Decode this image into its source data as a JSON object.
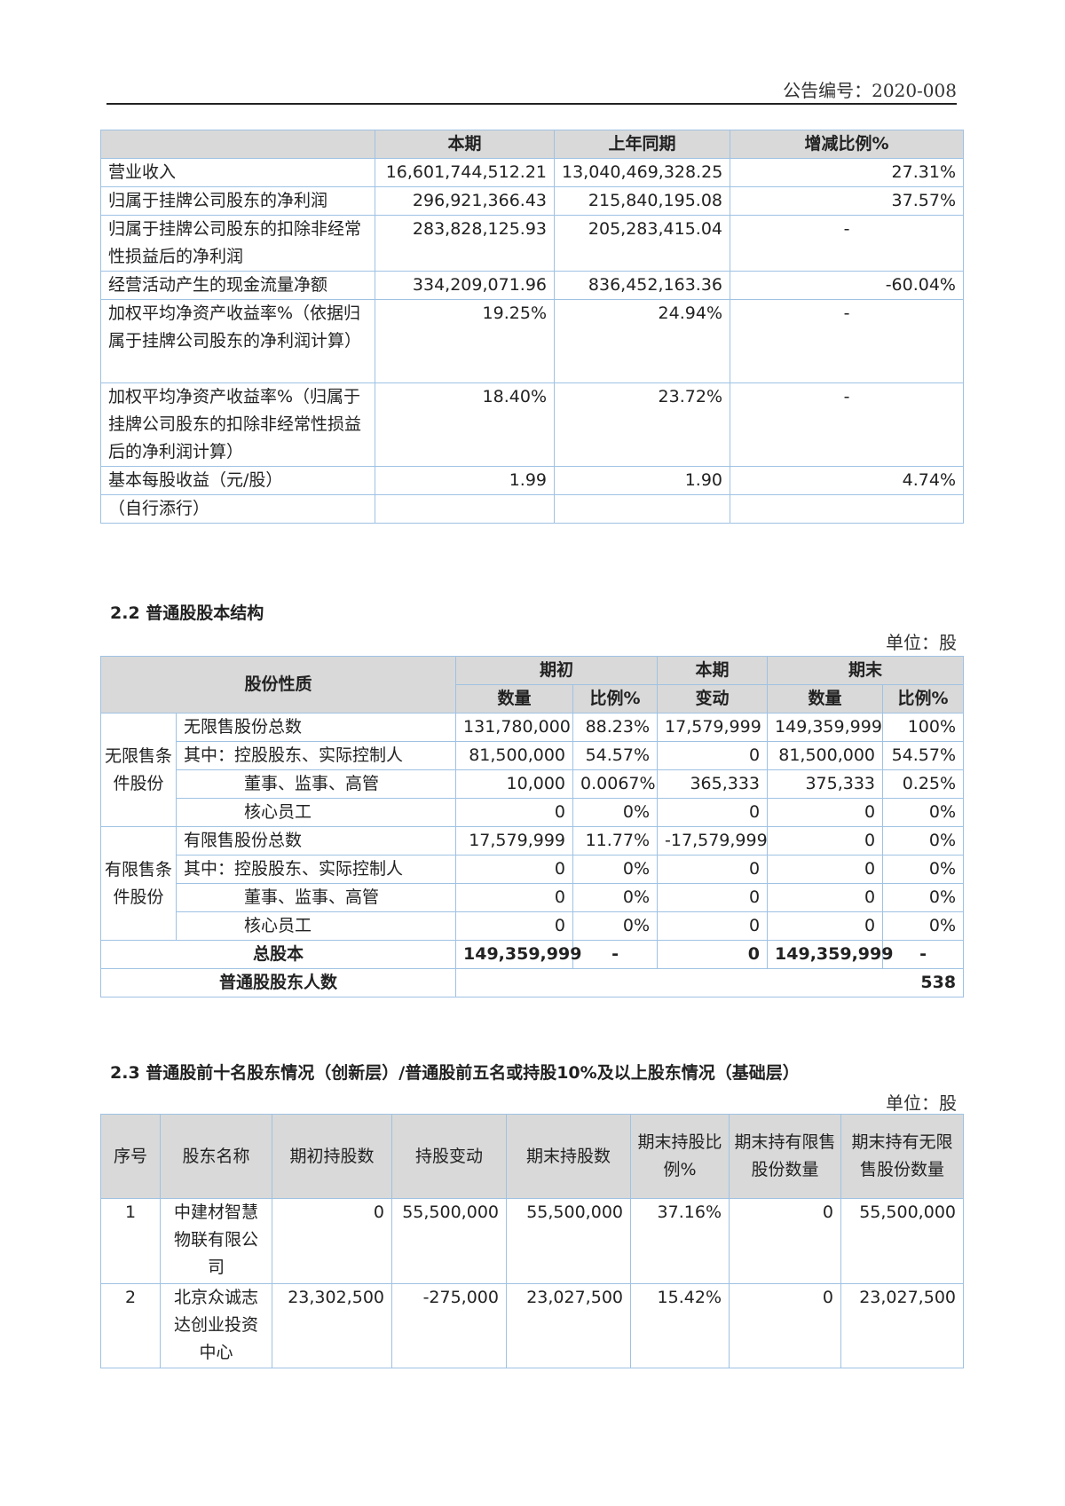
{
  "header": {
    "notice_no": "公告编号：2020-008"
  },
  "table1": {
    "headers": [
      "",
      "本期",
      "上年同期",
      "增减比例%"
    ],
    "rows": [
      [
        "营业收入",
        "16,601,744,512.21",
        "13,040,469,328.25",
        "27.31%"
      ],
      [
        "归属于挂牌公司股东的净利润",
        "296,921,366.43",
        "215,840,195.08",
        "37.57%"
      ],
      [
        "归属于挂牌公司股东的扣除非经常性损益后的净利润",
        "283,828,125.93",
        "205,283,415.04",
        "-"
      ],
      [
        "经营活动产生的现金流量净额",
        "334,209,071.96",
        "836,452,163.36",
        "-60.04%"
      ],
      [
        "加权平均净资产收益率%（依据归属于挂牌公司股东的净利润计算）",
        "19.25%",
        "24.94%",
        "-"
      ],
      [
        "加权平均净资产收益率%（归属于挂牌公司股东的扣除非经常性损益后的净利润计算）",
        "18.40%",
        "23.72%",
        "-"
      ],
      [
        "基本每股收益（元/股）",
        "1.99",
        "1.90",
        "4.74%"
      ],
      [
        "（自行添行）",
        "",
        "",
        ""
      ]
    ]
  },
  "section22": {
    "title": "2.2  普通股股本结构",
    "unit": "单位：股",
    "headers": {
      "nature": "股份性质",
      "begin": "期初",
      "change_top": "本期",
      "change_bottom": "变动",
      "end": "期末",
      "qty": "数量",
      "ratio": "比例%"
    },
    "groups": [
      {
        "label": "无限售条件股份",
        "rows": [
          [
            "无限售股份总数",
            "131,780,000",
            "88.23%",
            "17,579,999",
            "149,359,999",
            "100%"
          ],
          [
            "其中：控股股东、实际控制人",
            "81,500,000",
            "54.57%",
            "0",
            "81,500,000",
            "54.57%"
          ],
          [
            "董事、监事、高管",
            "10,000",
            "0.0067%",
            "365,333",
            "375,333",
            "0.25%"
          ],
          [
            "核心员工",
            "0",
            "0%",
            "0",
            "0",
            "0%"
          ]
        ]
      },
      {
        "label": "有限售条件股份",
        "rows": [
          [
            "有限售股份总数",
            "17,579,999",
            "11.77%",
            "-17,579,999",
            "0",
            "0%"
          ],
          [
            "其中：控股股东、实际控制人",
            "0",
            "0%",
            "0",
            "0",
            "0%"
          ],
          [
            "董事、监事、高管",
            "0",
            "0%",
            "0",
            "0",
            "0%"
          ],
          [
            "核心员工",
            "0",
            "0%",
            "0",
            "0",
            "0%"
          ]
        ]
      }
    ],
    "total": [
      "总股本",
      "149,359,999",
      "-",
      "0",
      "149,359,999",
      "-"
    ],
    "holders": [
      "普通股股东人数",
      "538"
    ]
  },
  "section23": {
    "title": "2.3  普通股前十名股东情况（创新层）/普通股前五名或持股10%及以上股东情况（基础层）",
    "unit": "单位：股",
    "headers": [
      "序号",
      "股东名称",
      "期初持股数",
      "持股变动",
      "期末持股数",
      "期末持股比例%",
      "期末持有限售股份数量",
      "期末持有无限售股份数量"
    ],
    "rows": [
      [
        "1",
        "中建材智慧物联有限公司",
        "0",
        "55,500,000",
        "55,500,000",
        "37.16%",
        "0",
        "55,500,000"
      ],
      [
        "2",
        "北京众诚志达创业投资中心",
        "23,302,500",
        "-275,000",
        "23,027,500",
        "15.42%",
        "0",
        "23,027,500"
      ]
    ]
  }
}
